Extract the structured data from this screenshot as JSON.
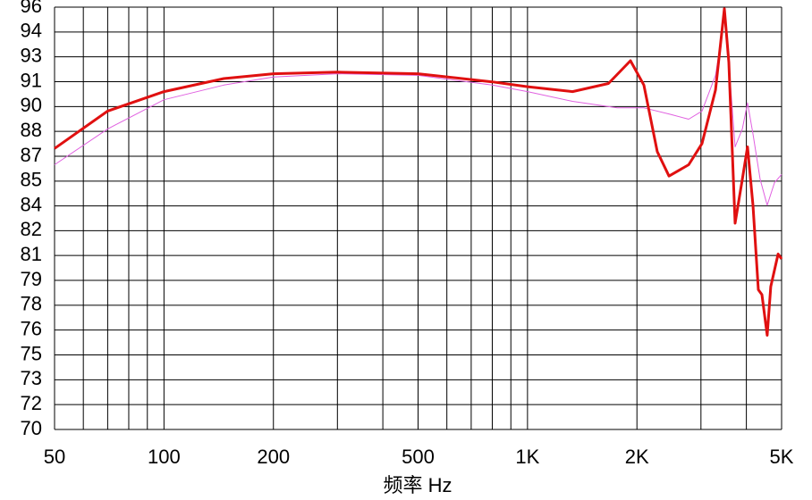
{
  "chart_data": {
    "type": "line",
    "x_label": "频率 Hz",
    "xscale": "log",
    "xlim": [
      50,
      5000
    ],
    "xticks": [
      50,
      100,
      200,
      500,
      {
        "value": 1000,
        "label": "1K"
      },
      {
        "value": 2000,
        "label": "2K"
      },
      {
        "value": 5000,
        "label": "5K"
      }
    ],
    "xgrid": [
      60,
      70,
      80,
      90,
      300,
      400,
      600,
      700,
      800,
      900,
      3000,
      4000
    ],
    "ylim": [
      70,
      96
    ],
    "yticks": [
      {
        "value": 70,
        "label": "70"
      },
      {
        "value": 71.53,
        "label": "72"
      },
      {
        "value": 73.06,
        "label": "73"
      },
      {
        "value": 74.59,
        "label": "75"
      },
      {
        "value": 76.12,
        "label": "76"
      },
      {
        "value": 77.65,
        "label": "78"
      },
      {
        "value": 79.18,
        "label": "79"
      },
      {
        "value": 80.71,
        "label": "81"
      },
      {
        "value": 82.24,
        "label": "82"
      },
      {
        "value": 83.76,
        "label": "84"
      },
      {
        "value": 85.29,
        "label": "85"
      },
      {
        "value": 86.82,
        "label": "87"
      },
      {
        "value": 88.35,
        "label": "88"
      },
      {
        "value": 89.88,
        "label": "90"
      },
      {
        "value": 91.41,
        "label": "91"
      },
      {
        "value": 92.94,
        "label": "93"
      },
      {
        "value": 94.47,
        "label": "94"
      },
      {
        "value": 96,
        "label": "96"
      }
    ],
    "grid": true,
    "series": [
      {
        "color": "#e060e0",
        "width": 1,
        "x": [
          50,
          70,
          100,
          146,
          200,
          300,
          500,
          800,
          1000,
          1330,
          1765,
          2090,
          2475,
          2775,
          3020,
          3290,
          3480,
          3580,
          3725,
          3900,
          4030,
          4170,
          4365,
          4565,
          4780,
          5000
        ],
        "values": [
          86.3,
          88.5,
          90.3,
          91.2,
          91.7,
          91.9,
          91.8,
          91.2,
          90.8,
          90.2,
          89.8,
          89.8,
          89.4,
          89.1,
          89.6,
          91.8,
          95.3,
          92.6,
          87.4,
          88.5,
          90.1,
          88.2,
          85.4,
          83.8,
          85.2,
          85.7
        ]
      },
      {
        "color": "#e01010",
        "width": 3,
        "x": [
          50,
          70,
          100,
          146,
          200,
          300,
          500,
          800,
          1000,
          1330,
          1670,
          1920,
          2090,
          2275,
          2450,
          2775,
          3020,
          3290,
          3480,
          3580,
          3725,
          3900,
          4030,
          4170,
          4315,
          4415,
          4565,
          4670,
          4890,
          5000
        ],
        "values": [
          87.3,
          89.6,
          90.8,
          91.6,
          91.9,
          92.0,
          91.9,
          91.4,
          91.1,
          90.8,
          91.3,
          92.7,
          91.2,
          87.1,
          85.6,
          86.3,
          87.6,
          90.9,
          95.9,
          92.6,
          82.7,
          85.4,
          87.4,
          83.8,
          78.6,
          78.3,
          75.8,
          78.8,
          80.8,
          80.5
        ]
      }
    ]
  }
}
